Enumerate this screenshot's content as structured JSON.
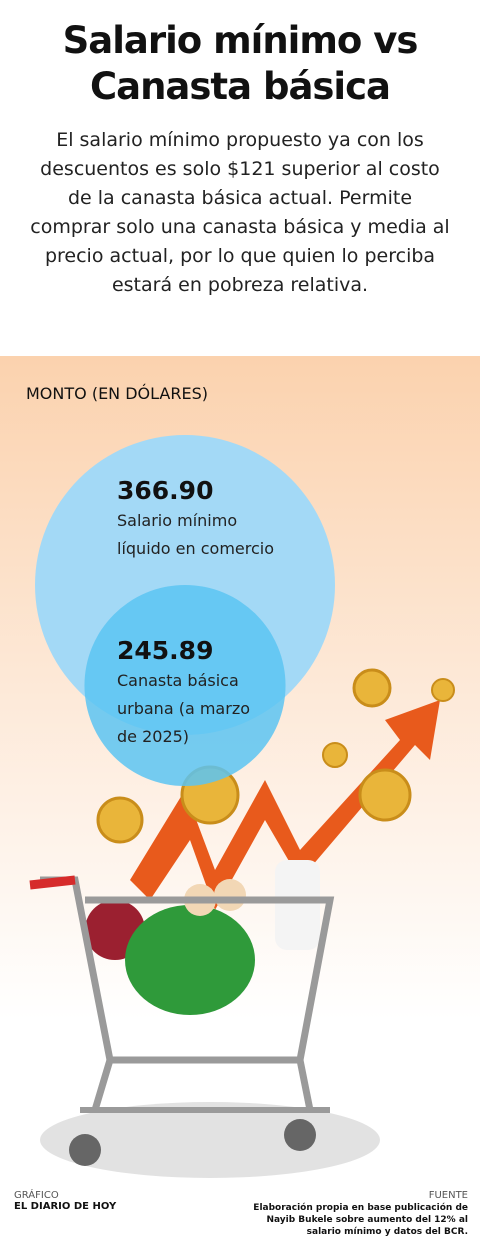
{
  "chart_data": {
    "type": "bubble",
    "title": "Salario mínimo vs Canasta básica",
    "subtitle": "El salario mínimo propuesto ya con los descuentos es solo $121 superior al costo de la canasta básica actual. Permite comprar solo una canasta básica y media al precio actual, por lo que quien lo perciba estará en pobreza relativa.",
    "y_label": "MONTO (EN DÓLARES)",
    "categories": [
      "Salario mínimo líquido en comercio",
      "Canasta básica urbana (a marzo de 2025)"
    ],
    "values": [
      366.9,
      245.89
    ],
    "value_labels": [
      "366.90",
      "245.89"
    ],
    "colors": [
      "#a3d9f6",
      "#5cc4f2"
    ]
  },
  "credit": {
    "label": "GRÁFICO",
    "name": "EL DIARIO DE HOY"
  },
  "source": {
    "label": "FUENTE",
    "text": "Elaboración propia en base publicación de Nayib Bukele sobre aumento del 12% al salario mínimo y datos del BCR."
  }
}
